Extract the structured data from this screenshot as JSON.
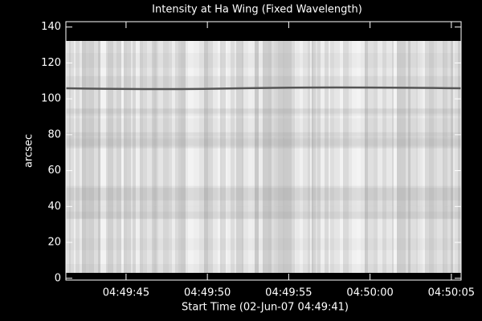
{
  "chart_data": {
    "type": "image",
    "title": "Intensity at Ha Wing (Fixed Wavelength)",
    "x_label": "Start Time (02-Jun-07 04:49:41)",
    "y_label": "arcsec",
    "xlim": [
      0.3,
      24.6
    ],
    "xticks": [
      {
        "value": 4,
        "label": "04:49:45"
      },
      {
        "value": 9,
        "label": "04:49:50"
      },
      {
        "value": 14,
        "label": "04:49:55"
      },
      {
        "value": 19,
        "label": "04:50:00"
      },
      {
        "value": 24,
        "label": "04:50:05"
      }
    ],
    "ylim": [
      -1,
      143
    ],
    "yticks": [
      0,
      20,
      40,
      60,
      80,
      100,
      120,
      140
    ]
  }
}
